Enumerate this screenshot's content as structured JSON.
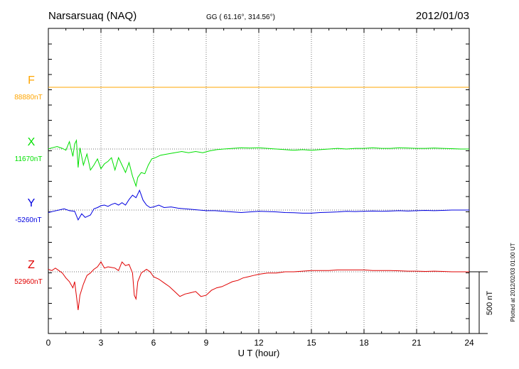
{
  "chart_data": {
    "type": "line",
    "title": "Narsarsuaq (NAQ)",
    "subtitle": "GG ( 61.16°, 314.56°)",
    "date": "2012/01/03",
    "xlabel": "U T (hour)",
    "xlim": [
      0,
      24
    ],
    "xticks": [
      "0",
      "3",
      "6",
      "9",
      "12",
      "15",
      "18",
      "21",
      "24"
    ],
    "scale_bar": "500 nT",
    "footer": "Plotted at 2012/02/03 01:00 UT",
    "grid": true,
    "series": [
      {
        "name": "F",
        "baseline_label": "88880nT",
        "color": "#ffa500",
        "values": [
          [
            0,
            0
          ],
          [
            24,
            0
          ]
        ]
      },
      {
        "name": "X",
        "baseline_label": "11670nT",
        "color": "#00e000",
        "values": [
          [
            0,
            0
          ],
          [
            0.2,
            10
          ],
          [
            0.5,
            20
          ],
          [
            0.8,
            5
          ],
          [
            1.0,
            -10
          ],
          [
            1.2,
            60
          ],
          [
            1.4,
            -60
          ],
          [
            1.5,
            40
          ],
          [
            1.6,
            70
          ],
          [
            1.7,
            -150
          ],
          [
            1.8,
            10
          ],
          [
            2.0,
            -130
          ],
          [
            2.2,
            -40
          ],
          [
            2.4,
            -170
          ],
          [
            2.6,
            -130
          ],
          [
            2.8,
            -80
          ],
          [
            3.0,
            -160
          ],
          [
            3.2,
            -120
          ],
          [
            3.4,
            -100
          ],
          [
            3.6,
            -70
          ],
          [
            3.8,
            -170
          ],
          [
            4.0,
            -70
          ],
          [
            4.2,
            -130
          ],
          [
            4.4,
            -190
          ],
          [
            4.6,
            -110
          ],
          [
            4.8,
            -220
          ],
          [
            5.0,
            -300
          ],
          [
            5.1,
            -230
          ],
          [
            5.3,
            -190
          ],
          [
            5.5,
            -200
          ],
          [
            5.7,
            -130
          ],
          [
            5.9,
            -80
          ],
          [
            6.1,
            -70
          ],
          [
            6.4,
            -50
          ],
          [
            6.8,
            -40
          ],
          [
            7.2,
            -30
          ],
          [
            7.6,
            -20
          ],
          [
            8.0,
            -30
          ],
          [
            8.4,
            -20
          ],
          [
            8.8,
            -30
          ],
          [
            9.2,
            -15
          ],
          [
            9.6,
            -5
          ],
          [
            10.0,
            0
          ],
          [
            10.5,
            5
          ],
          [
            11.0,
            10
          ],
          [
            11.5,
            8
          ],
          [
            12.0,
            10
          ],
          [
            12.5,
            5
          ],
          [
            13.0,
            0
          ],
          [
            13.5,
            -5
          ],
          [
            14.0,
            -10
          ],
          [
            14.5,
            -5
          ],
          [
            15.0,
            -10
          ],
          [
            15.5,
            -5
          ],
          [
            16.0,
            0
          ],
          [
            16.5,
            5
          ],
          [
            17.0,
            0
          ],
          [
            17.5,
            5
          ],
          [
            18.0,
            5
          ],
          [
            18.5,
            10
          ],
          [
            19.0,
            5
          ],
          [
            19.5,
            5
          ],
          [
            20.0,
            10
          ],
          [
            20.5,
            8
          ],
          [
            21.0,
            5
          ],
          [
            21.5,
            5
          ],
          [
            22.0,
            8
          ],
          [
            22.5,
            5
          ],
          [
            23.0,
            3
          ],
          [
            23.5,
            0
          ],
          [
            24.0,
            0
          ]
        ]
      },
      {
        "name": "Y",
        "baseline_label": "-5260nT",
        "color": "#0000e0",
        "values": [
          [
            0,
            -20
          ],
          [
            0.3,
            -10
          ],
          [
            0.6,
            0
          ],
          [
            0.9,
            10
          ],
          [
            1.2,
            -5
          ],
          [
            1.5,
            -10
          ],
          [
            1.7,
            -80
          ],
          [
            1.9,
            -30
          ],
          [
            2.1,
            -60
          ],
          [
            2.4,
            -40
          ],
          [
            2.6,
            10
          ],
          [
            2.8,
            20
          ],
          [
            3.0,
            35
          ],
          [
            3.2,
            40
          ],
          [
            3.4,
            30
          ],
          [
            3.6,
            45
          ],
          [
            3.8,
            55
          ],
          [
            4.0,
            40
          ],
          [
            4.2,
            60
          ],
          [
            4.4,
            40
          ],
          [
            4.6,
            85
          ],
          [
            4.8,
            120
          ],
          [
            5.0,
            100
          ],
          [
            5.2,
            160
          ],
          [
            5.4,
            80
          ],
          [
            5.6,
            40
          ],
          [
            5.8,
            20
          ],
          [
            6.0,
            25
          ],
          [
            6.3,
            40
          ],
          [
            6.6,
            20
          ],
          [
            7.0,
            25
          ],
          [
            7.4,
            15
          ],
          [
            7.8,
            10
          ],
          [
            8.2,
            5
          ],
          [
            8.6,
            0
          ],
          [
            9.0,
            -5
          ],
          [
            9.5,
            -5
          ],
          [
            10.0,
            -10
          ],
          [
            10.5,
            -15
          ],
          [
            11.0,
            -20
          ],
          [
            11.5,
            -15
          ],
          [
            12.0,
            -10
          ],
          [
            12.5,
            -12
          ],
          [
            13.0,
            -15
          ],
          [
            13.5,
            -20
          ],
          [
            14.0,
            -22
          ],
          [
            14.5,
            -25
          ],
          [
            15.0,
            -25
          ],
          [
            15.5,
            -20
          ],
          [
            16.0,
            -18
          ],
          [
            16.5,
            -15
          ],
          [
            17.0,
            -10
          ],
          [
            17.5,
            -12
          ],
          [
            18.0,
            -10
          ],
          [
            18.5,
            -8
          ],
          [
            19.0,
            -10
          ],
          [
            19.5,
            -8
          ],
          [
            20.0,
            -5
          ],
          [
            20.5,
            -8
          ],
          [
            21.0,
            -5
          ],
          [
            21.5,
            -3
          ],
          [
            22.0,
            -5
          ],
          [
            22.5,
            -3
          ],
          [
            23.0,
            0
          ],
          [
            23.5,
            0
          ],
          [
            24.0,
            0
          ]
        ]
      },
      {
        "name": "Z",
        "baseline_label": "52960nT",
        "color": "#e00000",
        "values": [
          [
            0,
            20
          ],
          [
            0.2,
            10
          ],
          [
            0.4,
            30
          ],
          [
            0.6,
            10
          ],
          [
            0.8,
            -10
          ],
          [
            1.0,
            -50
          ],
          [
            1.2,
            -80
          ],
          [
            1.4,
            -130
          ],
          [
            1.5,
            -80
          ],
          [
            1.7,
            -310
          ],
          [
            1.8,
            -190
          ],
          [
            2.0,
            -100
          ],
          [
            2.2,
            -30
          ],
          [
            2.4,
            -10
          ],
          [
            2.6,
            20
          ],
          [
            2.8,
            40
          ],
          [
            3.0,
            80
          ],
          [
            3.2,
            30
          ],
          [
            3.4,
            40
          ],
          [
            3.6,
            35
          ],
          [
            3.8,
            30
          ],
          [
            4.0,
            10
          ],
          [
            4.2,
            80
          ],
          [
            4.4,
            50
          ],
          [
            4.6,
            60
          ],
          [
            4.8,
            -10
          ],
          [
            4.9,
            -190
          ],
          [
            5.0,
            -220
          ],
          [
            5.1,
            -80
          ],
          [
            5.3,
            -10
          ],
          [
            5.6,
            20
          ],
          [
            5.8,
            0
          ],
          [
            6.0,
            -40
          ],
          [
            6.3,
            -60
          ],
          [
            6.6,
            -90
          ],
          [
            6.9,
            -120
          ],
          [
            7.2,
            -160
          ],
          [
            7.5,
            -200
          ],
          [
            7.8,
            -180
          ],
          [
            8.1,
            -170
          ],
          [
            8.4,
            -160
          ],
          [
            8.7,
            -200
          ],
          [
            9.0,
            -190
          ],
          [
            9.3,
            -150
          ],
          [
            9.6,
            -130
          ],
          [
            9.9,
            -120
          ],
          [
            10.2,
            -100
          ],
          [
            10.5,
            -80
          ],
          [
            10.8,
            -70
          ],
          [
            11.1,
            -50
          ],
          [
            11.4,
            -40
          ],
          [
            11.7,
            -30
          ],
          [
            12.0,
            -20
          ],
          [
            12.5,
            -10
          ],
          [
            13.0,
            -10
          ],
          [
            13.5,
            0
          ],
          [
            14.0,
            0
          ],
          [
            14.5,
            5
          ],
          [
            15.0,
            10
          ],
          [
            15.5,
            10
          ],
          [
            16.0,
            10
          ],
          [
            16.5,
            15
          ],
          [
            17.0,
            15
          ],
          [
            17.5,
            15
          ],
          [
            18.0,
            15
          ],
          [
            18.5,
            10
          ],
          [
            19.0,
            10
          ],
          [
            19.5,
            10
          ],
          [
            20.0,
            8
          ],
          [
            20.5,
            5
          ],
          [
            21.0,
            5
          ],
          [
            21.5,
            3
          ],
          [
            22.0,
            5
          ],
          [
            22.5,
            3
          ],
          [
            23.0,
            0
          ],
          [
            23.5,
            0
          ],
          [
            24.0,
            0
          ]
        ]
      }
    ]
  }
}
